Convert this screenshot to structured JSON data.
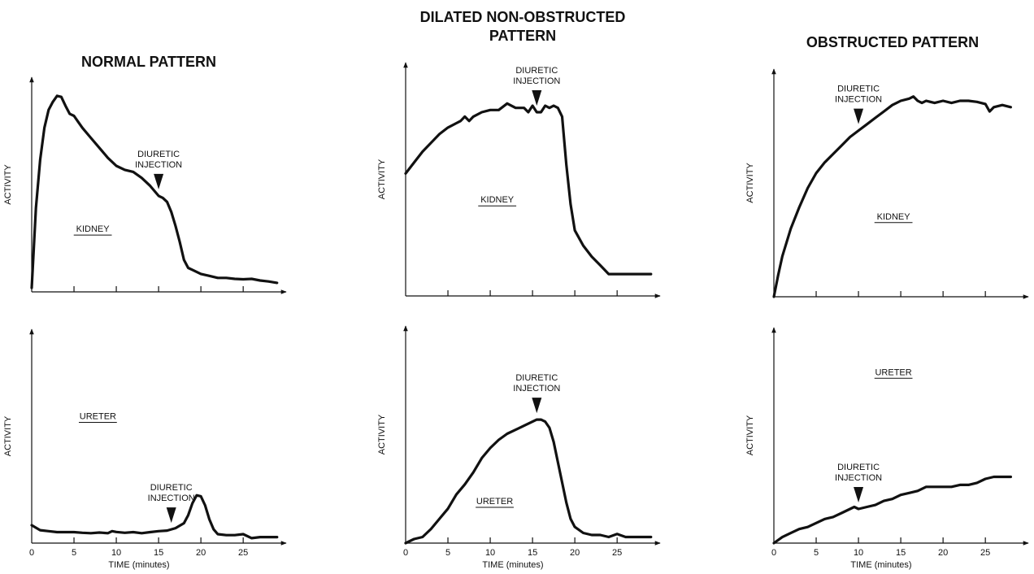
{
  "figure": {
    "columns": [
      {
        "title_lines": [
          "NORMAL PATTERN"
        ]
      },
      {
        "title_lines": [
          "DILATED NON-OBSTRUCTED",
          "PATTERN"
        ]
      },
      {
        "title_lines": [
          "OBSTRUCTED PATTERN"
        ]
      }
    ]
  },
  "chart_data": [
    {
      "type": "line",
      "panel": "normal-kidney",
      "ylabel": "ACTIVITY",
      "xlabel": "",
      "label": "KIDNEY",
      "xlim": [
        0,
        29.5
      ],
      "ylim": [
        0,
        100
      ],
      "xticks": [
        5,
        10,
        15,
        20,
        25
      ],
      "xticklabels": [],
      "annotation": {
        "text_lines": [
          "DIURETIC",
          "INJECTION"
        ],
        "x": 15
      },
      "series": [
        {
          "x": [
            0,
            0.5,
            1,
            1.5,
            2,
            2.5,
            3,
            3.5,
            4,
            4.5,
            5,
            5.5,
            6,
            7,
            8,
            9,
            10,
            11,
            12,
            13,
            14,
            15,
            15.5,
            16,
            16.5,
            17,
            17.5,
            18,
            18.5,
            19,
            20,
            21,
            22,
            23,
            24,
            25,
            26,
            27,
            28,
            29
          ],
          "y": [
            2,
            42,
            66,
            82,
            91,
            95,
            98,
            97.5,
            93,
            89,
            88,
            85,
            82,
            77,
            72,
            67,
            63,
            61,
            60,
            57,
            53,
            48,
            47,
            45,
            40,
            33,
            25,
            16,
            12,
            11,
            9,
            8,
            7,
            7,
            6.5,
            6.3,
            6.5,
            5.7,
            5.2,
            4.5
          ]
        }
      ]
    },
    {
      "type": "line",
      "panel": "normal-ureter",
      "ylabel": "ACTIVITY",
      "xlabel": "TIME (minutes)",
      "label": "URETER",
      "xlim": [
        0,
        29.5
      ],
      "ylim": [
        0,
        100
      ],
      "xticks": [
        0,
        5,
        10,
        15,
        20,
        25
      ],
      "xticklabels": [
        "0",
        "5",
        "10",
        "15",
        "20",
        "25"
      ],
      "annotation": {
        "text_lines": [
          "DIURETIC",
          "INJECTION"
        ],
        "x": 16.5
      },
      "series": [
        {
          "x": [
            0,
            1,
            2,
            3,
            4,
            5,
            6,
            7,
            8,
            9,
            9.5,
            10,
            11,
            12,
            13,
            14,
            15,
            16,
            17,
            18,
            18.5,
            19,
            19.5,
            20,
            20.5,
            21,
            21.5,
            22,
            23,
            24,
            25,
            26,
            27,
            28,
            29
          ],
          "y": [
            9,
            6.5,
            6,
            5.5,
            5.5,
            5.5,
            5.2,
            5,
            5.3,
            5,
            6,
            5.6,
            5.2,
            5.5,
            5,
            5.5,
            6,
            6.3,
            7.5,
            10,
            14,
            20,
            24,
            23.5,
            19,
            12,
            7,
            4.5,
            4,
            4,
            4.5,
            2.5,
            3,
            3,
            3
          ]
        }
      ]
    },
    {
      "type": "line",
      "panel": "dilated-kidney",
      "ylabel": "ACTIVITY",
      "xlabel": "",
      "label": "KIDNEY",
      "xlim": [
        0,
        29.5
      ],
      "ylim": [
        0,
        100
      ],
      "xticks": [
        5,
        10,
        15,
        20,
        25
      ],
      "xticklabels": [],
      "annotation": {
        "text_lines": [
          "DIURETIC",
          "INJECTION"
        ],
        "x": 15.5
      },
      "series": [
        {
          "x": [
            0,
            1,
            2,
            3,
            4,
            5,
            6,
            6.5,
            7,
            7.5,
            8,
            9,
            10,
            11,
            12,
            13,
            14,
            14.5,
            15,
            15.5,
            16,
            16.5,
            17,
            17.5,
            18,
            18.5,
            19,
            19.5,
            20,
            21,
            22,
            23,
            24,
            25,
            26,
            27,
            28,
            29
          ],
          "y": [
            56,
            61,
            66,
            70,
            74,
            77,
            79,
            80,
            82,
            80,
            82,
            84,
            85,
            85,
            88,
            86,
            86,
            84,
            87,
            84,
            84,
            87,
            86,
            87,
            86,
            82,
            60,
            42,
            30,
            23,
            18,
            14,
            10,
            10,
            10,
            10,
            10,
            10
          ]
        }
      ]
    },
    {
      "type": "line",
      "panel": "dilated-ureter",
      "ylabel": "ACTIVITY",
      "xlabel": "TIME (minutes)",
      "label": "URETER",
      "xlim": [
        0,
        29.5
      ],
      "ylim": [
        0,
        100
      ],
      "xticks": [
        0,
        5,
        10,
        15,
        20,
        25
      ],
      "xticklabels": [
        "0",
        "5",
        "10",
        "15",
        "20",
        "25"
      ],
      "annotation": {
        "text_lines": [
          "DIURETIC",
          "INJECTION"
        ],
        "x": 15.5
      },
      "series": [
        {
          "x": [
            0,
            1,
            2,
            3,
            4,
            5,
            6,
            7,
            8,
            9,
            10,
            11,
            12,
            13,
            14,
            15,
            15.5,
            16,
            16.5,
            17,
            17.5,
            18,
            18.5,
            19,
            19.5,
            20,
            21,
            22,
            23,
            24,
            25,
            26,
            27,
            28,
            29
          ],
          "y": [
            0,
            2,
            3,
            7,
            12,
            17,
            24,
            29,
            35,
            42,
            47,
            51,
            54,
            56,
            58,
            60,
            61,
            61,
            60,
            57,
            50,
            40,
            30,
            20,
            12,
            8,
            5,
            4,
            4,
            3,
            4.5,
            3,
            3,
            3,
            3
          ]
        }
      ]
    },
    {
      "type": "line",
      "panel": "obstructed-kidney",
      "ylabel": "ACTIVITY",
      "xlabel": "",
      "label": "KIDNEY",
      "xlim": [
        0,
        29.5
      ],
      "ylim": [
        0,
        100
      ],
      "xticks": [
        5,
        10,
        15,
        20,
        25
      ],
      "xticklabels": [],
      "annotation": {
        "text_lines": [
          "DIURETIC",
          "INJECTION"
        ],
        "x": 10
      },
      "series": [
        {
          "x": [
            0,
            0.5,
            1,
            2,
            3,
            4,
            5,
            6,
            7,
            8,
            9,
            10,
            11,
            12,
            13,
            14,
            15,
            16,
            16.5,
            17,
            17.5,
            18,
            19,
            20,
            21,
            22,
            23,
            24,
            25,
            25.5,
            26,
            27,
            28
          ],
          "y": [
            0,
            10,
            19,
            32,
            42,
            51,
            58,
            63,
            67,
            71,
            75,
            78,
            81,
            84,
            87,
            90,
            92,
            93,
            94,
            92,
            91,
            92,
            91,
            92,
            91,
            92,
            92,
            91.5,
            90.5,
            87,
            89,
            90,
            89
          ]
        }
      ]
    },
    {
      "type": "line",
      "panel": "obstructed-ureter",
      "ylabel": "ACTIVITY",
      "xlabel": "TIME (minutes)",
      "label": "URETER",
      "xlim": [
        0,
        29.5
      ],
      "ylim": [
        0,
        100
      ],
      "xticks": [
        0,
        5,
        10,
        15,
        20,
        25
      ],
      "xticklabels": [
        "0",
        "5",
        "10",
        "15",
        "20",
        "25"
      ],
      "annotation": {
        "text_lines": [
          "DIURETIC",
          "INJECTION"
        ],
        "x": 10
      },
      "series": [
        {
          "x": [
            0,
            1,
            2,
            3,
            4,
            5,
            6,
            7,
            8,
            9,
            9.5,
            10,
            11,
            12,
            13,
            14,
            15,
            16,
            17,
            18,
            19,
            20,
            21,
            22,
            23,
            24,
            25,
            26,
            27,
            28
          ],
          "y": [
            0,
            3,
            5,
            7,
            8,
            10,
            12,
            13,
            15,
            17,
            18,
            17,
            18,
            19,
            21,
            22,
            24,
            25,
            26,
            28,
            28,
            28,
            28,
            29,
            29,
            30,
            32,
            33,
            33,
            33
          ]
        }
      ]
    }
  ]
}
